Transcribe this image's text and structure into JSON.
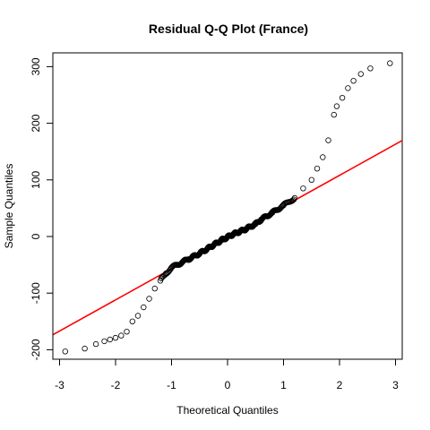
{
  "chart_data": {
    "type": "scatter",
    "title": "Residual Q-Q Plot (France)",
    "xlabel": "Theoretical Quantiles",
    "ylabel": "Sample Quantiles",
    "xlim": [
      -3.0,
      3.0
    ],
    "ylim": [
      -210,
      310
    ],
    "x_ticks": [
      -3,
      -2,
      -1,
      0,
      1,
      2,
      3
    ],
    "y_ticks": [
      -200,
      -100,
      0,
      100,
      200,
      300
    ],
    "grid": false,
    "legend": "none",
    "colors": {
      "points": "#000000",
      "reference_line": "#ff0000"
    },
    "reference_line": {
      "intercept": -2,
      "slope": 55
    },
    "anchor_points": [
      {
        "x": -2.9,
        "y": -203
      },
      {
        "x": -2.55,
        "y": -198
      },
      {
        "x": -2.35,
        "y": -190
      },
      {
        "x": -2.2,
        "y": -185
      },
      {
        "x": -2.1,
        "y": -182
      },
      {
        "x": -2.0,
        "y": -179
      },
      {
        "x": -1.9,
        "y": -175
      },
      {
        "x": -1.8,
        "y": -168
      },
      {
        "x": -1.7,
        "y": -150
      },
      {
        "x": -1.6,
        "y": -140
      },
      {
        "x": -1.5,
        "y": -125
      },
      {
        "x": -1.4,
        "y": -110
      },
      {
        "x": -1.3,
        "y": -92
      },
      {
        "x": -1.2,
        "y": -78
      },
      {
        "x": -1.1,
        "y": -65
      },
      {
        "x": -1.0,
        "y": -55
      },
      {
        "x": -0.9,
        "y": -50
      },
      {
        "x": -0.7,
        "y": -40
      },
      {
        "x": -0.5,
        "y": -30
      },
      {
        "x": -0.3,
        "y": -18
      },
      {
        "x": -0.1,
        "y": -6
      },
      {
        "x": 0.1,
        "y": 4
      },
      {
        "x": 0.3,
        "y": 12
      },
      {
        "x": 0.5,
        "y": 22
      },
      {
        "x": 0.6,
        "y": 30
      },
      {
        "x": 0.8,
        "y": 42
      },
      {
        "x": 1.0,
        "y": 55
      },
      {
        "x": 1.2,
        "y": 68
      },
      {
        "x": 1.35,
        "y": 85
      },
      {
        "x": 1.5,
        "y": 100
      },
      {
        "x": 1.6,
        "y": 120
      },
      {
        "x": 1.7,
        "y": 140
      },
      {
        "x": 1.8,
        "y": 170
      },
      {
        "x": 1.9,
        "y": 215
      },
      {
        "x": 1.95,
        "y": 230
      },
      {
        "x": 2.05,
        "y": 245
      },
      {
        "x": 2.15,
        "y": 262
      },
      {
        "x": 2.25,
        "y": 275
      },
      {
        "x": 2.38,
        "y": 287
      },
      {
        "x": 2.55,
        "y": 297
      },
      {
        "x": 2.9,
        "y": 306
      }
    ],
    "n_points": 300
  }
}
